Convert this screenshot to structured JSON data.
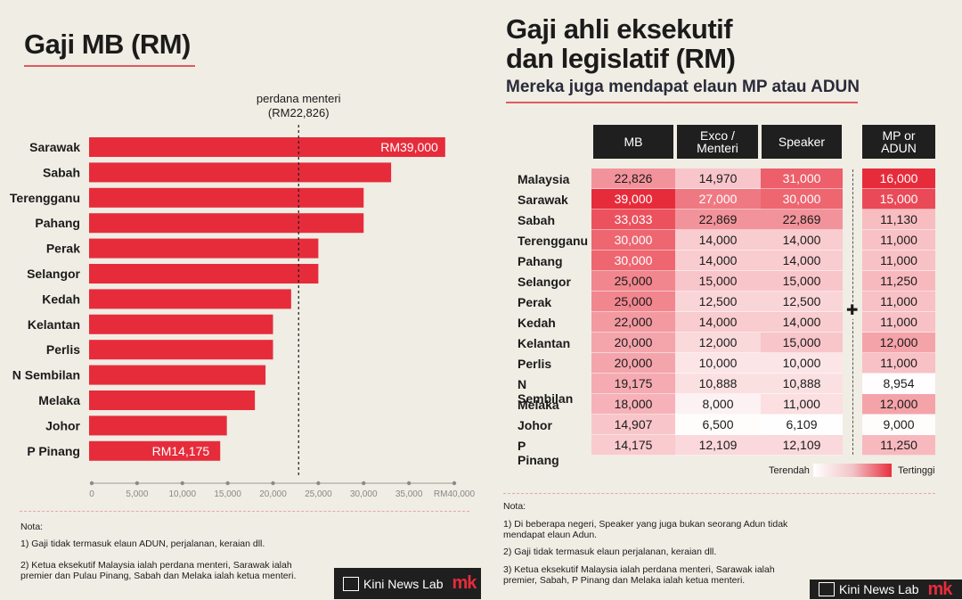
{
  "left": {
    "title": "Gaji MB (RM)",
    "reference": {
      "label_line1": "perdana menteri",
      "label_line2": "(RM22,826)",
      "value": 22826
    },
    "first_label": "RM39,000",
    "last_label": "RM14,175",
    "notes_head": "Nota:",
    "notes": [
      "1) Gaji tidak termasuk elaun ADUN, perjalanan, keraian dll.",
      "2) Ketua eksekutif Malaysia ialah perdana menteri, Sarawak ialah premier dan Pulau Pinang, Sabah dan Melaka ialah ketua menteri."
    ]
  },
  "right": {
    "title_line1": "Gaji ahli eksekutif",
    "title_line2": "dan legislatif (RM)",
    "subtitle": "Mereka juga mendapat elaun MP atau ADUN",
    "columns": [
      "MB",
      "Exco / Menteri",
      "Speaker",
      "MP or ADUN"
    ],
    "plus": "✚",
    "legend_low": "Terendah",
    "legend_high": "Tertinggi",
    "notes_head": "Nota:",
    "notes": [
      "1) Di beberapa negeri, Speaker yang juga bukan seorang Adun tidak mendapat elaun Adun.",
      "2) Gaji tidak termasuk elaun perjalanan, keraian dll.",
      "3) Ketua eksekutif Malaysia ialah perdana menteri, Sarawak ialah premier, Sabah, P Pinang dan Melaka ialah ketua menteri."
    ],
    "rows": [
      {
        "name": "Malaysia",
        "mb": "22,826",
        "exco": "14,970",
        "speaker": "31,000",
        "mp": "16,000"
      },
      {
        "name": "Sarawak",
        "mb": "39,000",
        "exco": "27,000",
        "speaker": "30,000",
        "mp": "15,000"
      },
      {
        "name": "Sabah",
        "mb": "33,033",
        "exco": "22,869",
        "speaker": "22,869",
        "mp": "11,130"
      },
      {
        "name": "Terengganu",
        "mb": "30,000",
        "exco": "14,000",
        "speaker": "14,000",
        "mp": "11,000"
      },
      {
        "name": "Pahang",
        "mb": "30,000",
        "exco": "14,000",
        "speaker": "14,000",
        "mp": "11,000"
      },
      {
        "name": "Selangor",
        "mb": "25,000",
        "exco": "15,000",
        "speaker": "15,000",
        "mp": "11,250"
      },
      {
        "name": "Perak",
        "mb": "25,000",
        "exco": "12,500",
        "speaker": "12,500",
        "mp": "11,000"
      },
      {
        "name": "Kedah",
        "mb": "22,000",
        "exco": "14,000",
        "speaker": "14,000",
        "mp": "11,000"
      },
      {
        "name": "Kelantan",
        "mb": "20,000",
        "exco": "12,000",
        "speaker": "15,000",
        "mp": "12,000"
      },
      {
        "name": "Perlis",
        "mb": "20,000",
        "exco": "10,000",
        "speaker": "10,000",
        "mp": "11,000"
      },
      {
        "name": "N Sembilan",
        "mb": "19,175",
        "exco": "10,888",
        "speaker": "10,888",
        "mp": "8,954"
      },
      {
        "name": "Melaka",
        "mb": "18,000",
        "exco": "8,000",
        "speaker": "11,000",
        "mp": "12,000"
      },
      {
        "name": "Johor",
        "mb": "14,907",
        "exco": "6,500",
        "speaker": "6,109",
        "mp": "9,000"
      },
      {
        "name": "P Pinang",
        "mb": "14,175",
        "exco": "12,109",
        "speaker": "12,109",
        "mp": "11,250"
      }
    ]
  },
  "footer": {
    "brand": "Kini News Lab",
    "mark_a": "m",
    "mark_b": "k"
  },
  "colors": {
    "bar": "#e62c3b",
    "background": "#f0ede4",
    "header": "#1f1f1f"
  },
  "chart_data": {
    "type": "bar",
    "orientation": "horizontal",
    "categories": [
      "Sarawak",
      "Sabah",
      "Terengganu",
      "Pahang",
      "Perak",
      "Selangor",
      "Kedah",
      "Kelantan",
      "Perlis",
      "N Sembilan",
      "Melaka",
      "Johor",
      "P Pinang"
    ],
    "values": [
      39000,
      33033,
      30000,
      30000,
      25000,
      25000,
      22000,
      20000,
      20000,
      19175,
      18000,
      14907,
      14175
    ],
    "xlim": [
      0,
      40000
    ],
    "ticks": [
      0,
      5000,
      10000,
      15000,
      20000,
      25000,
      30000,
      35000,
      40000
    ],
    "tick_labels": [
      "0",
      "5,000",
      "10,000",
      "15,000",
      "20,000",
      "25,000",
      "30,000",
      "35,000",
      "RM40,000"
    ],
    "grid": false
  }
}
